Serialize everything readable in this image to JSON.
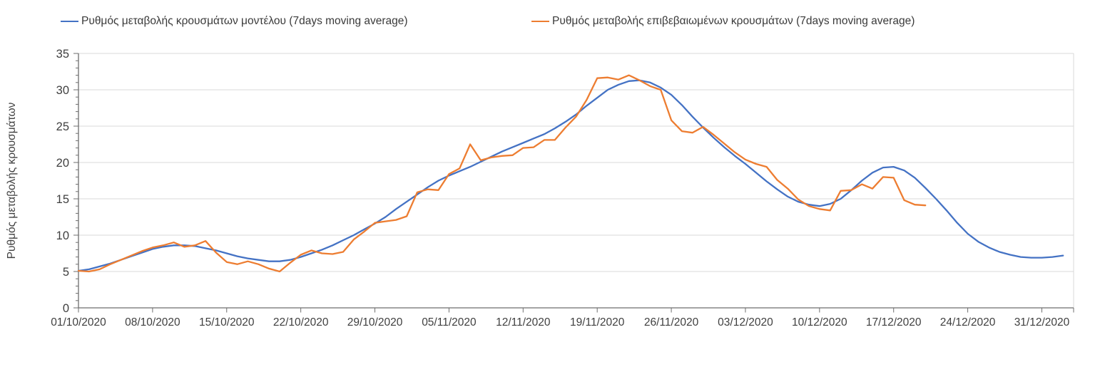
{
  "legend": [
    {
      "label": "Ρυθμός μεταβολής κρουσμάτων μοντέλου (7days moving average)",
      "color": "#4472C4"
    },
    {
      "label": "Ρυθμός μεταβολής επιβεβαιωμένων κρουσμάτων (7days moving average)",
      "color": "#ED7D31"
    }
  ],
  "chart_data": {
    "type": "line",
    "title": "",
    "xlabel": "",
    "ylabel": "Ρυθμός μεταβολής κρουσμάτων",
    "ylim": [
      0,
      35
    ],
    "y_major_step": 5,
    "y_minor_step": 1,
    "y_tick_labels": [
      "0",
      "5",
      "10",
      "15",
      "20",
      "25",
      "30",
      "35"
    ],
    "grid": "horizontal-only",
    "legend_position": "top",
    "x_unit": "days since 01/10/2020",
    "x_axis_span_days": 94,
    "x_tick_days": [
      0,
      7,
      14,
      21,
      28,
      35,
      42,
      49,
      56,
      63,
      70,
      77,
      84,
      91
    ],
    "x_tick_labels": [
      "01/10/2020",
      "08/10/2020",
      "15/10/2020",
      "22/10/2020",
      "29/10/2020",
      "05/11/2020",
      "12/11/2020",
      "19/11/2020",
      "26/11/2020",
      "03/12/2020",
      "10/12/2020",
      "17/12/2020",
      "24/12/2020",
      "31/12/2020"
    ],
    "colors": {
      "gridline": "#d9d9d9",
      "axis": "#6e6e6e",
      "tick_label": "#3f3f3f"
    },
    "series": [
      {
        "name": "Ρυθμός μεταβολής κρουσμάτων μοντέλου (7days moving average)",
        "color": "#4472C4",
        "start_day": 0,
        "values": [
          5.1,
          5.3,
          5.7,
          6.1,
          6.6,
          7.1,
          7.6,
          8.1,
          8.4,
          8.6,
          8.6,
          8.5,
          8.2,
          7.9,
          7.5,
          7.1,
          6.8,
          6.6,
          6.4,
          6.4,
          6.6,
          7.0,
          7.5,
          8.0,
          8.6,
          9.3,
          10.0,
          10.8,
          11.6,
          12.5,
          13.6,
          14.6,
          15.6,
          16.6,
          17.5,
          18.2,
          18.8,
          19.4,
          20.1,
          20.8,
          21.5,
          22.1,
          22.7,
          23.3,
          23.9,
          24.7,
          25.6,
          26.6,
          27.8,
          28.9,
          30.0,
          30.7,
          31.2,
          31.3,
          31.0,
          30.3,
          29.3,
          27.9,
          26.3,
          24.8,
          23.4,
          22.1,
          20.9,
          19.8,
          18.6,
          17.4,
          16.3,
          15.3,
          14.6,
          14.2,
          14.0,
          14.3,
          15.0,
          16.2,
          17.5,
          18.6,
          19.3,
          19.4,
          18.9,
          17.9,
          16.5,
          15.0,
          13.4,
          11.7,
          10.2,
          9.1,
          8.3,
          7.7,
          7.3,
          7.0,
          6.9,
          6.9,
          7.0,
          7.2
        ]
      },
      {
        "name": "Ρυθμός μεταβολής επιβεβαιωμένων κρουσμάτων (7days moving average)",
        "color": "#ED7D31",
        "start_day": 0,
        "values": [
          5.1,
          5.0,
          5.3,
          6.0,
          6.6,
          7.2,
          7.8,
          8.3,
          8.6,
          9.0,
          8.4,
          8.6,
          9.2,
          7.6,
          6.3,
          6.0,
          6.4,
          6.0,
          5.4,
          5.0,
          6.2,
          7.3,
          7.9,
          7.5,
          7.4,
          7.7,
          9.4,
          10.5,
          11.7,
          11.9,
          12.1,
          12.6,
          15.9,
          16.3,
          16.2,
          18.4,
          19.2,
          22.5,
          20.3,
          20.7,
          20.9,
          21.0,
          22.0,
          22.1,
          23.1,
          23.1,
          24.8,
          26.3,
          28.6,
          31.6,
          31.7,
          31.4,
          32.0,
          31.3,
          30.5,
          30.0,
          25.8,
          24.3,
          24.1,
          24.9,
          23.8,
          22.6,
          21.4,
          20.4,
          19.8,
          19.4,
          17.6,
          16.4,
          14.9,
          14.0,
          13.6,
          13.4,
          16.1,
          16.2,
          17.0,
          16.4,
          18.0,
          17.9,
          14.8,
          14.2,
          14.1
        ]
      }
    ]
  }
}
